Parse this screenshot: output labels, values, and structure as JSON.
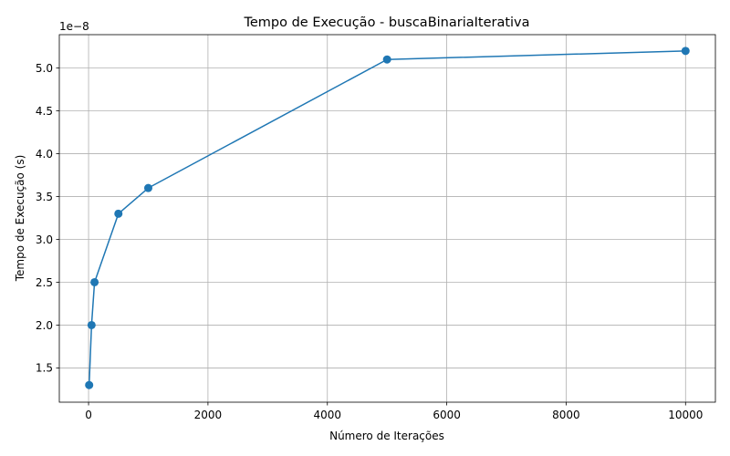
{
  "chart_data": {
    "type": "line",
    "title": "Tempo de Execução - buscaBinariaIterativa",
    "xlabel": "Número de Iterações",
    "ylabel": "Tempo de Execução (s)",
    "y_scale_label": "1e−8",
    "x": [
      10,
      50,
      100,
      500,
      1000,
      5000,
      10000
    ],
    "series": [
      {
        "values": [
          1.3e-08,
          2e-08,
          2.5e-08,
          3.3e-08,
          3.6e-08,
          5.1e-08,
          5.2e-08
        ],
        "color": "#1f77b4"
      }
    ],
    "xlim": [
      -490,
      10500
    ],
    "ylim": [
      1.1e-08,
      5.39e-08
    ],
    "x_ticks": [
      0,
      2000,
      4000,
      6000,
      8000,
      10000
    ],
    "x_tick_labels": [
      "0",
      "2000",
      "4000",
      "6000",
      "8000",
      "10000"
    ],
    "y_ticks": [
      1.5e-08,
      2e-08,
      2.5e-08,
      3e-08,
      3.5e-08,
      4e-08,
      4.5e-08,
      5e-08
    ],
    "y_tick_labels": [
      "1.5",
      "2.0",
      "2.5",
      "3.0",
      "3.5",
      "4.0",
      "4.5",
      "5.0"
    ],
    "grid": true,
    "marker": "circle"
  }
}
